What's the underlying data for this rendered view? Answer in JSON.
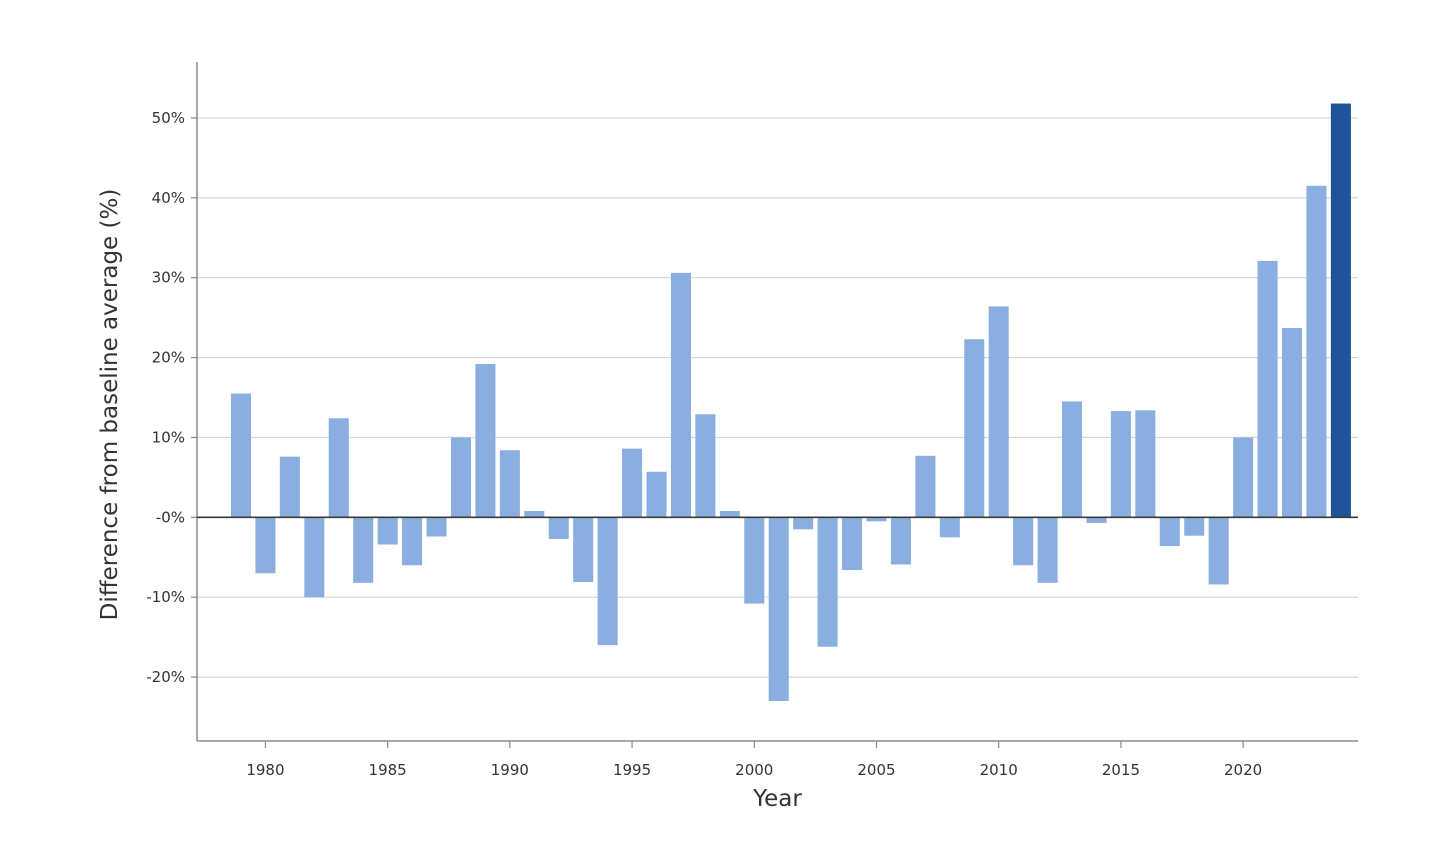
{
  "chart_data": {
    "type": "bar",
    "title": "",
    "xlabel": "Year",
    "ylabel": "Difference from baseline average (%)",
    "x": [
      1979,
      1980,
      1981,
      1982,
      1983,
      1984,
      1985,
      1986,
      1987,
      1988,
      1989,
      1990,
      1991,
      1992,
      1993,
      1994,
      1995,
      1996,
      1997,
      1998,
      1999,
      2000,
      2001,
      2002,
      2003,
      2004,
      2005,
      2006,
      2007,
      2008,
      2009,
      2010,
      2011,
      2012,
      2013,
      2014,
      2015,
      2016,
      2017,
      2018,
      2019,
      2020,
      2021,
      2022,
      2023,
      2024
    ],
    "values": [
      15.5,
      -7.0,
      7.6,
      -10.0,
      12.4,
      -8.2,
      -3.4,
      -6.0,
      -2.4,
      10.0,
      19.2,
      8.4,
      0.8,
      -2.7,
      -8.1,
      -16.0,
      8.6,
      5.7,
      30.6,
      12.9,
      0.8,
      -10.8,
      -23.0,
      -1.5,
      -16.2,
      -6.6,
      -0.5,
      -5.9,
      7.7,
      -2.5,
      22.3,
      26.4,
      -6.0,
      -8.2,
      14.5,
      -0.7,
      13.3,
      13.4,
      -3.6,
      -2.3,
      -8.4,
      10.0,
      32.1,
      23.7,
      41.5,
      51.8
    ],
    "highlight_x": 2024,
    "colors": {
      "bar": "#8aaee0",
      "highlight": "#1f5499"
    },
    "ylim": [
      -28,
      57
    ],
    "xlim": [
      1977.2,
      2024.7
    ],
    "yticks": [
      -20,
      -10,
      0,
      10,
      20,
      30,
      40,
      50
    ],
    "ytick_labels": [
      "-20%",
      "-10%",
      "-0%",
      "10%",
      "20%",
      "30%",
      "40%",
      "50%"
    ],
    "xticks": [
      1980,
      1985,
      1990,
      1995,
      2000,
      2005,
      2010,
      2015,
      2020
    ],
    "xtick_labels": [
      "1980",
      "1985",
      "1990",
      "1995",
      "2000",
      "2005",
      "2010",
      "2015",
      "2020"
    ],
    "grid": true,
    "legend": false
  }
}
